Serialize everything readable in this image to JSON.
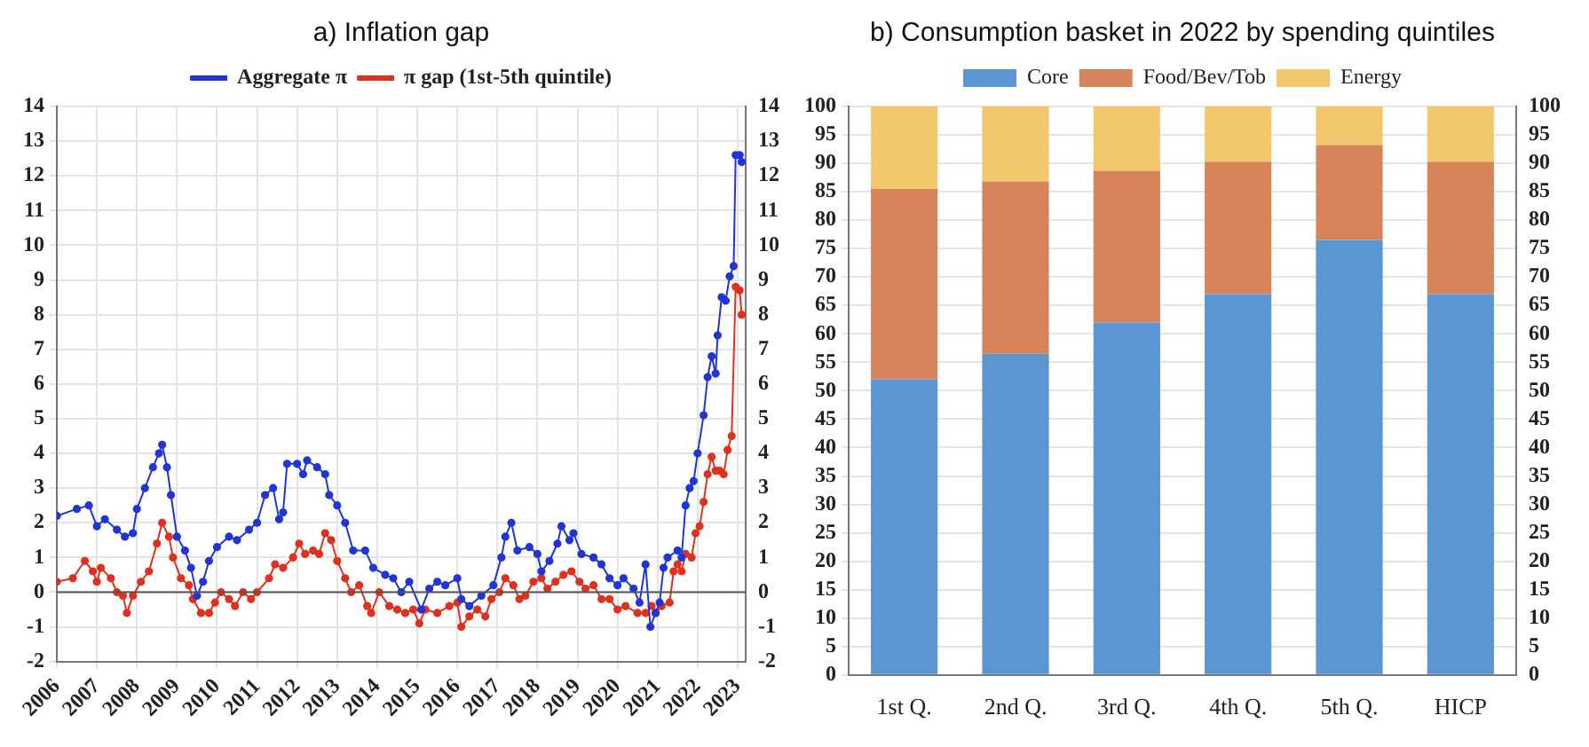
{
  "chart_data": [
    {
      "type": "line",
      "title": "a) Inflation gap",
      "xlim": [
        2006,
        2023.2
      ],
      "xticks": [
        2006,
        2007,
        2008,
        2009,
        2010,
        2011,
        2012,
        2013,
        2014,
        2015,
        2016,
        2017,
        2018,
        2019,
        2020,
        2021,
        2022,
        2023
      ],
      "ylim": [
        -2,
        14
      ],
      "yticks": [
        -2,
        -1,
        0,
        1,
        2,
        3,
        4,
        5,
        6,
        7,
        8,
        9,
        10,
        11,
        12,
        13,
        14
      ],
      "y2lim": [
        -2,
        14
      ],
      "y2ticks": [
        -2,
        -1,
        0,
        1,
        2,
        3,
        4,
        5,
        6,
        7,
        8,
        9,
        10,
        11,
        12,
        13,
        14
      ],
      "grid": true,
      "legend": "top",
      "marker": "circle",
      "line_style": "solid",
      "ref_lines": [
        {
          "axis": "y",
          "value": 0,
          "color": "#555555"
        }
      ],
      "series": [
        {
          "name": "Aggregate π",
          "color": "#1f35d6",
          "x": [
            2006,
            2006.5,
            2006.8,
            2007,
            2007.2,
            2007.5,
            2007.7,
            2007.9,
            2008,
            2008.2,
            2008.4,
            2008.55,
            2008.63,
            2008.75,
            2008.85,
            2009,
            2009.2,
            2009.35,
            2009.5,
            2009.65,
            2009.8,
            2010,
            2010.3,
            2010.5,
            2010.8,
            2011,
            2011.2,
            2011.4,
            2011.55,
            2011.65,
            2011.75,
            2012,
            2012.15,
            2012.25,
            2012.5,
            2012.7,
            2012.8,
            2013,
            2013.2,
            2013.4,
            2013.7,
            2013.9,
            2014.2,
            2014.4,
            2014.6,
            2014.8,
            2015.1,
            2015.3,
            2015.5,
            2015.7,
            2016,
            2016.1,
            2016.3,
            2016.6,
            2016.9,
            2017.1,
            2017.2,
            2017.35,
            2017.5,
            2017.8,
            2018,
            2018.1,
            2018.3,
            2018.5,
            2018.6,
            2018.8,
            2018.9,
            2019.1,
            2019.4,
            2019.6,
            2019.8,
            2020,
            2020.15,
            2020.4,
            2020.55,
            2020.7,
            2020.82,
            2020.95,
            2021.05,
            2021.15,
            2021.25,
            2021.5,
            2021.6,
            2021.7,
            2021.8,
            2021.9,
            2022,
            2022.15,
            2022.25,
            2022.35,
            2022.45,
            2022.5,
            2022.6,
            2022.7,
            2022.8,
            2022.9,
            2022.95,
            2023.05,
            2023.1
          ],
          "values": [
            2.2,
            2.4,
            2.5,
            1.9,
            2.1,
            1.8,
            1.6,
            1.7,
            2.4,
            3.0,
            3.6,
            4.0,
            4.25,
            3.6,
            2.8,
            1.6,
            1.2,
            0.7,
            -0.1,
            0.3,
            0.9,
            1.3,
            1.6,
            1.5,
            1.8,
            2.0,
            2.8,
            3.0,
            2.1,
            2.3,
            3.7,
            3.7,
            3.4,
            3.8,
            3.6,
            3.4,
            2.8,
            2.5,
            2.0,
            1.2,
            1.2,
            0.7,
            0.5,
            0.4,
            0.0,
            0.3,
            -0.5,
            0.1,
            0.3,
            0.2,
            0.4,
            -0.2,
            -0.4,
            -0.1,
            0.2,
            1.0,
            1.6,
            2.0,
            1.2,
            1.3,
            1.1,
            0.6,
            0.9,
            1.4,
            1.9,
            1.5,
            1.7,
            1.1,
            1.0,
            0.8,
            0.4,
            0.2,
            0.4,
            0.1,
            -0.3,
            0.8,
            -1.0,
            -0.6,
            -0.3,
            0.7,
            1.0,
            1.2,
            1.0,
            2.5,
            3.0,
            3.2,
            4.0,
            5.1,
            6.2,
            6.8,
            6.3,
            7.4,
            8.5,
            8.4,
            9.1,
            9.4,
            12.6,
            12.6,
            12.4
          ]
        },
        {
          "name": "π gap (1st-5th quintile)",
          "color": "#e0301e",
          "x": [
            2006,
            2006.4,
            2006.7,
            2006.9,
            2007,
            2007.1,
            2007.35,
            2007.5,
            2007.65,
            2007.75,
            2007.9,
            2008.1,
            2008.3,
            2008.5,
            2008.63,
            2008.8,
            2008.9,
            2009.1,
            2009.3,
            2009.4,
            2009.6,
            2009.8,
            2009.95,
            2010.1,
            2010.3,
            2010.45,
            2010.65,
            2010.85,
            2011,
            2011.3,
            2011.45,
            2011.65,
            2011.9,
            2012.05,
            2012.2,
            2012.4,
            2012.55,
            2012.7,
            2012.85,
            2013,
            2013.2,
            2013.35,
            2013.55,
            2013.75,
            2013.85,
            2014.05,
            2014.3,
            2014.5,
            2014.7,
            2014.9,
            2015.05,
            2015.2,
            2015.5,
            2015.8,
            2016,
            2016.1,
            2016.3,
            2016.5,
            2016.7,
            2016.85,
            2017.05,
            2017.2,
            2017.4,
            2017.55,
            2017.7,
            2017.9,
            2018.1,
            2018.25,
            2018.45,
            2018.65,
            2018.85,
            2019.05,
            2019.2,
            2019.4,
            2019.6,
            2019.8,
            2020,
            2020.2,
            2020.5,
            2020.7,
            2020.85,
            2020.95,
            2021.1,
            2021.3,
            2021.4,
            2021.5,
            2021.6,
            2021.7,
            2021.85,
            2021.95,
            2022.05,
            2022.15,
            2022.25,
            2022.35,
            2022.45,
            2022.55,
            2022.65,
            2022.75,
            2022.85,
            2022.95,
            2023.05,
            2023.1
          ],
          "values": [
            0.3,
            0.4,
            0.9,
            0.6,
            0.3,
            0.7,
            0.4,
            0.0,
            -0.1,
            -0.6,
            -0.1,
            0.3,
            0.6,
            1.4,
            2.0,
            1.6,
            1.0,
            0.4,
            0.2,
            -0.2,
            -0.6,
            -0.6,
            -0.3,
            0.0,
            -0.2,
            -0.4,
            0.0,
            -0.2,
            0.0,
            0.4,
            0.8,
            0.7,
            1.0,
            1.4,
            1.1,
            1.2,
            1.1,
            1.7,
            1.5,
            0.9,
            0.4,
            0.0,
            0.2,
            -0.4,
            -0.6,
            0.0,
            -0.4,
            -0.5,
            -0.6,
            -0.5,
            -0.9,
            -0.5,
            -0.6,
            -0.4,
            -0.3,
            -1.0,
            -0.7,
            -0.5,
            -0.7,
            -0.2,
            0.0,
            0.4,
            0.2,
            -0.2,
            -0.1,
            0.3,
            0.4,
            0.1,
            0.3,
            0.5,
            0.6,
            0.3,
            0.1,
            0.2,
            -0.2,
            -0.2,
            -0.5,
            -0.4,
            -0.6,
            -0.6,
            -0.4,
            -0.6,
            -0.4,
            -0.3,
            0.6,
            0.8,
            0.6,
            1.1,
            1.0,
            1.7,
            1.9,
            2.6,
            3.4,
            3.9,
            3.5,
            3.5,
            3.4,
            4.1,
            4.5,
            8.8,
            8.7,
            8.0
          ]
        }
      ]
    },
    {
      "type": "bar",
      "stacked": true,
      "title": "b) Consumption basket in 2022 by spending quintiles",
      "categories": [
        "1st Q.",
        "2nd Q.",
        "3rd Q.",
        "4th Q.",
        "5th Q.",
        "HICP"
      ],
      "ylim": [
        0,
        100
      ],
      "yticks": [
        0,
        5,
        10,
        15,
        20,
        25,
        30,
        35,
        40,
        45,
        50,
        55,
        60,
        65,
        70,
        75,
        80,
        85,
        90,
        95,
        100
      ],
      "y2lim": [
        0,
        100
      ],
      "y2ticks": [
        0,
        5,
        10,
        15,
        20,
        25,
        30,
        35,
        40,
        45,
        50,
        55,
        60,
        65,
        70,
        75,
        80,
        85,
        90,
        95,
        100
      ],
      "grid": "y",
      "legend": "top",
      "series": [
        {
          "name": "Core",
          "color": "#5b96d2",
          "values": [
            52,
            56.5,
            62,
            67,
            76.5,
            67
          ]
        },
        {
          "name": "Food/Bev/Tob",
          "color": "#d8845a",
          "values": [
            33.5,
            30.3,
            26.7,
            23.3,
            16.7,
            23.3
          ]
        },
        {
          "name": "Energy",
          "color": "#f1c96c",
          "values": [
            14.5,
            13.2,
            11.3,
            9.7,
            6.8,
            9.7
          ]
        }
      ]
    }
  ]
}
